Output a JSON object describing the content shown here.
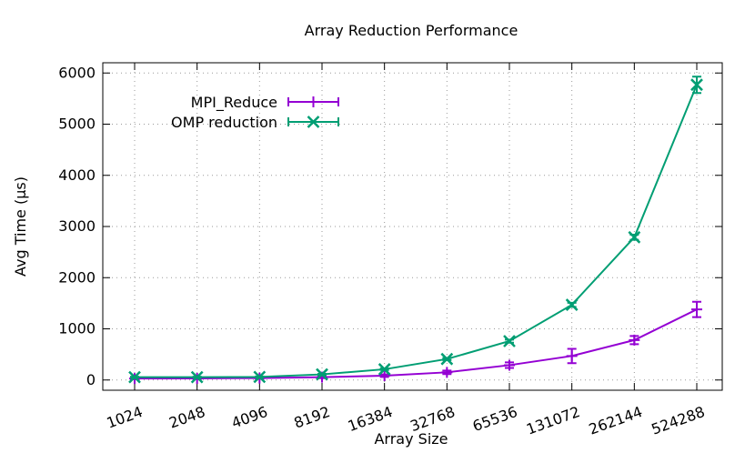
{
  "chart_data": {
    "type": "line",
    "title": "Array Reduction Performance",
    "xlabel": "Array Size",
    "ylabel": "Avg Time (µs)",
    "categories": [
      "1024",
      "2048",
      "4096",
      "8192",
      "16384",
      "32768",
      "65536",
      "131072",
      "262144",
      "524288"
    ],
    "ylim": [
      -200,
      6200
    ],
    "yticks": [
      0,
      1000,
      2000,
      3000,
      4000,
      5000,
      6000
    ],
    "grid": true,
    "legend_position": "top-left",
    "series": [
      {
        "name": "MPI_Reduce",
        "color": "#9400d3",
        "marker": "plus",
        "values": [
          30,
          32,
          38,
          55,
          85,
          150,
          290,
          470,
          780,
          1380
        ],
        "errors": [
          15,
          15,
          15,
          20,
          25,
          35,
          55,
          140,
          80,
          150
        ]
      },
      {
        "name": "OMP reduction",
        "color": "#009e73",
        "marker": "cross",
        "values": [
          55,
          55,
          60,
          110,
          210,
          410,
          760,
          1470,
          2790,
          5770
        ],
        "errors": [
          10,
          10,
          10,
          10,
          15,
          20,
          30,
          40,
          50,
          160
        ]
      }
    ]
  }
}
